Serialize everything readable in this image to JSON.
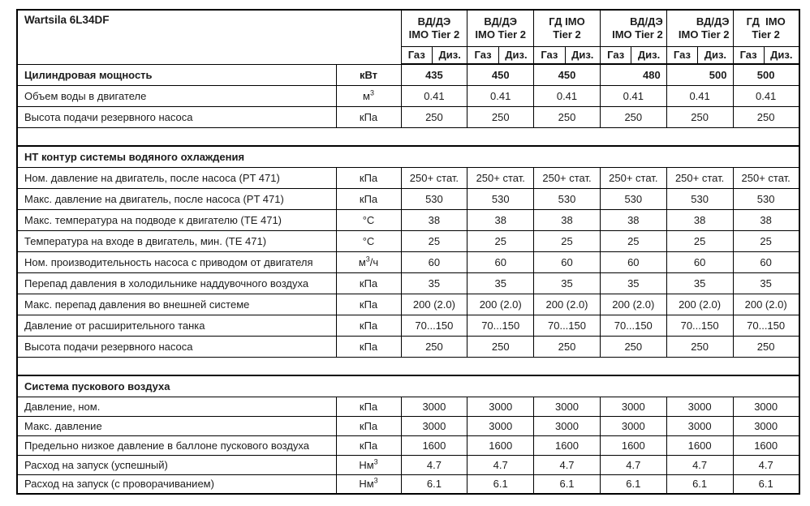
{
  "title": "Wartsila 6L34DF",
  "columns": {
    "groups": [
      {
        "line1": "ВД/ДЭ",
        "line2": "IMO Tier 2",
        "align": "center"
      },
      {
        "line1": "ВД/ДЭ",
        "line2": "IMO Tier 2",
        "align": "center"
      },
      {
        "line1": "ГД IMO",
        "line2": "Tier 2",
        "align": "center"
      },
      {
        "line1": "ВД/ДЭ",
        "line2": "IMO Tier 2",
        "align": "right"
      },
      {
        "line1": "ВД/ДЭ",
        "line2": "IMO Tier 2",
        "align": "right"
      },
      {
        "line1": "ГД  IMO",
        "line2": "Tier 2",
        "align": "center"
      }
    ],
    "fuel_labels": [
      "Газ",
      "Диз."
    ]
  },
  "sections": [
    {
      "header": null,
      "rows": [
        {
          "name": "Цилиндровая мощность",
          "unit": "кВт",
          "bold": true,
          "values": [
            "435",
            "450",
            "450",
            "480",
            "500",
            "500"
          ],
          "aligns": [
            "center",
            "center",
            "center",
            "right",
            "right",
            "center"
          ]
        },
        {
          "name": "Объем воды в двигателе",
          "unit": "м^3",
          "values": [
            "0.41",
            "0.41",
            "0.41",
            "0.41",
            "0.41",
            "0.41"
          ]
        },
        {
          "name": "Высота подачи резервного насоса",
          "unit": "кПа",
          "values": [
            "250",
            "250",
            "250",
            "250",
            "250",
            "250"
          ]
        }
      ]
    },
    {
      "header": "НТ контур системы водяного охлаждения",
      "rows": [
        {
          "name": "Ном. давление на двигатель, после насоса (PT 471)",
          "unit": "кПа",
          "values": [
            "250+ стат.",
            "250+ стат.",
            "250+ стат.",
            "250+ стат.",
            "250+ стат.",
            "250+ стат."
          ]
        },
        {
          "name": "Макс. давление на двигатель, после насоса (PT 471)",
          "unit": "кПа",
          "values": [
            "530",
            "530",
            "530",
            "530",
            "530",
            "530"
          ]
        },
        {
          "name": "Макс. температура на подводе к двигателю (TE 471)",
          "unit": "°C",
          "values": [
            "38",
            "38",
            "38",
            "38",
            "38",
            "38"
          ]
        },
        {
          "name": "Температура на входе в двигатель, мин. (TE 471)",
          "unit": "°C",
          "values": [
            "25",
            "25",
            "25",
            "25",
            "25",
            "25"
          ]
        },
        {
          "name": "Ном. производительность насоса с приводом от двигателя",
          "unit": "м^3/ч",
          "values": [
            "60",
            "60",
            "60",
            "60",
            "60",
            "60"
          ]
        },
        {
          "name": "Перепад давления в холодильнике наддувочного воздуха",
          "unit": "кПа",
          "values": [
            "35",
            "35",
            "35",
            "35",
            "35",
            "35"
          ]
        },
        {
          "name": "Макс. перепад давления во внешней системе",
          "unit": "кПа",
          "values": [
            "200 (2.0)",
            "200 (2.0)",
            "200 (2.0)",
            "200 (2.0)",
            "200 (2.0)",
            "200 (2.0)"
          ]
        },
        {
          "name": "Давление от расширительного танка",
          "unit": "кПа",
          "values": [
            "70...150",
            "70...150",
            "70...150",
            "70...150",
            "70...150",
            "70...150"
          ]
        },
        {
          "name": "Высота подачи резервного насоса",
          "unit": "кПа",
          "values": [
            "250",
            "250",
            "250",
            "250",
            "250",
            "250"
          ]
        }
      ]
    },
    {
      "header": "Система пускового воздуха",
      "compact": true,
      "rows": [
        {
          "name": "Давление, ном.",
          "unit": "кПа",
          "values": [
            "3000",
            "3000",
            "3000",
            "3000",
            "3000",
            "3000"
          ]
        },
        {
          "name": "Макс. давление",
          "unit": "кПа",
          "values": [
            "3000",
            "3000",
            "3000",
            "3000",
            "3000",
            "3000"
          ]
        },
        {
          "name": "Предельно низкое давление в баллоне пускового воздуха",
          "unit": "кПа",
          "values": [
            "1600",
            "1600",
            "1600",
            "1600",
            "1600",
            "1600"
          ]
        },
        {
          "name": "Расход на запуск (успешный)",
          "unit": "Нм^3",
          "values": [
            "4.7",
            "4.7",
            "4.7",
            "4.7",
            "4.7",
            "4.7"
          ]
        },
        {
          "name": "Расход на запуск (с проворачиванием)",
          "unit": "Нм^3",
          "values": [
            "6.1",
            "6.1",
            "6.1",
            "6.1",
            "6.1",
            "6.1"
          ]
        }
      ]
    }
  ]
}
